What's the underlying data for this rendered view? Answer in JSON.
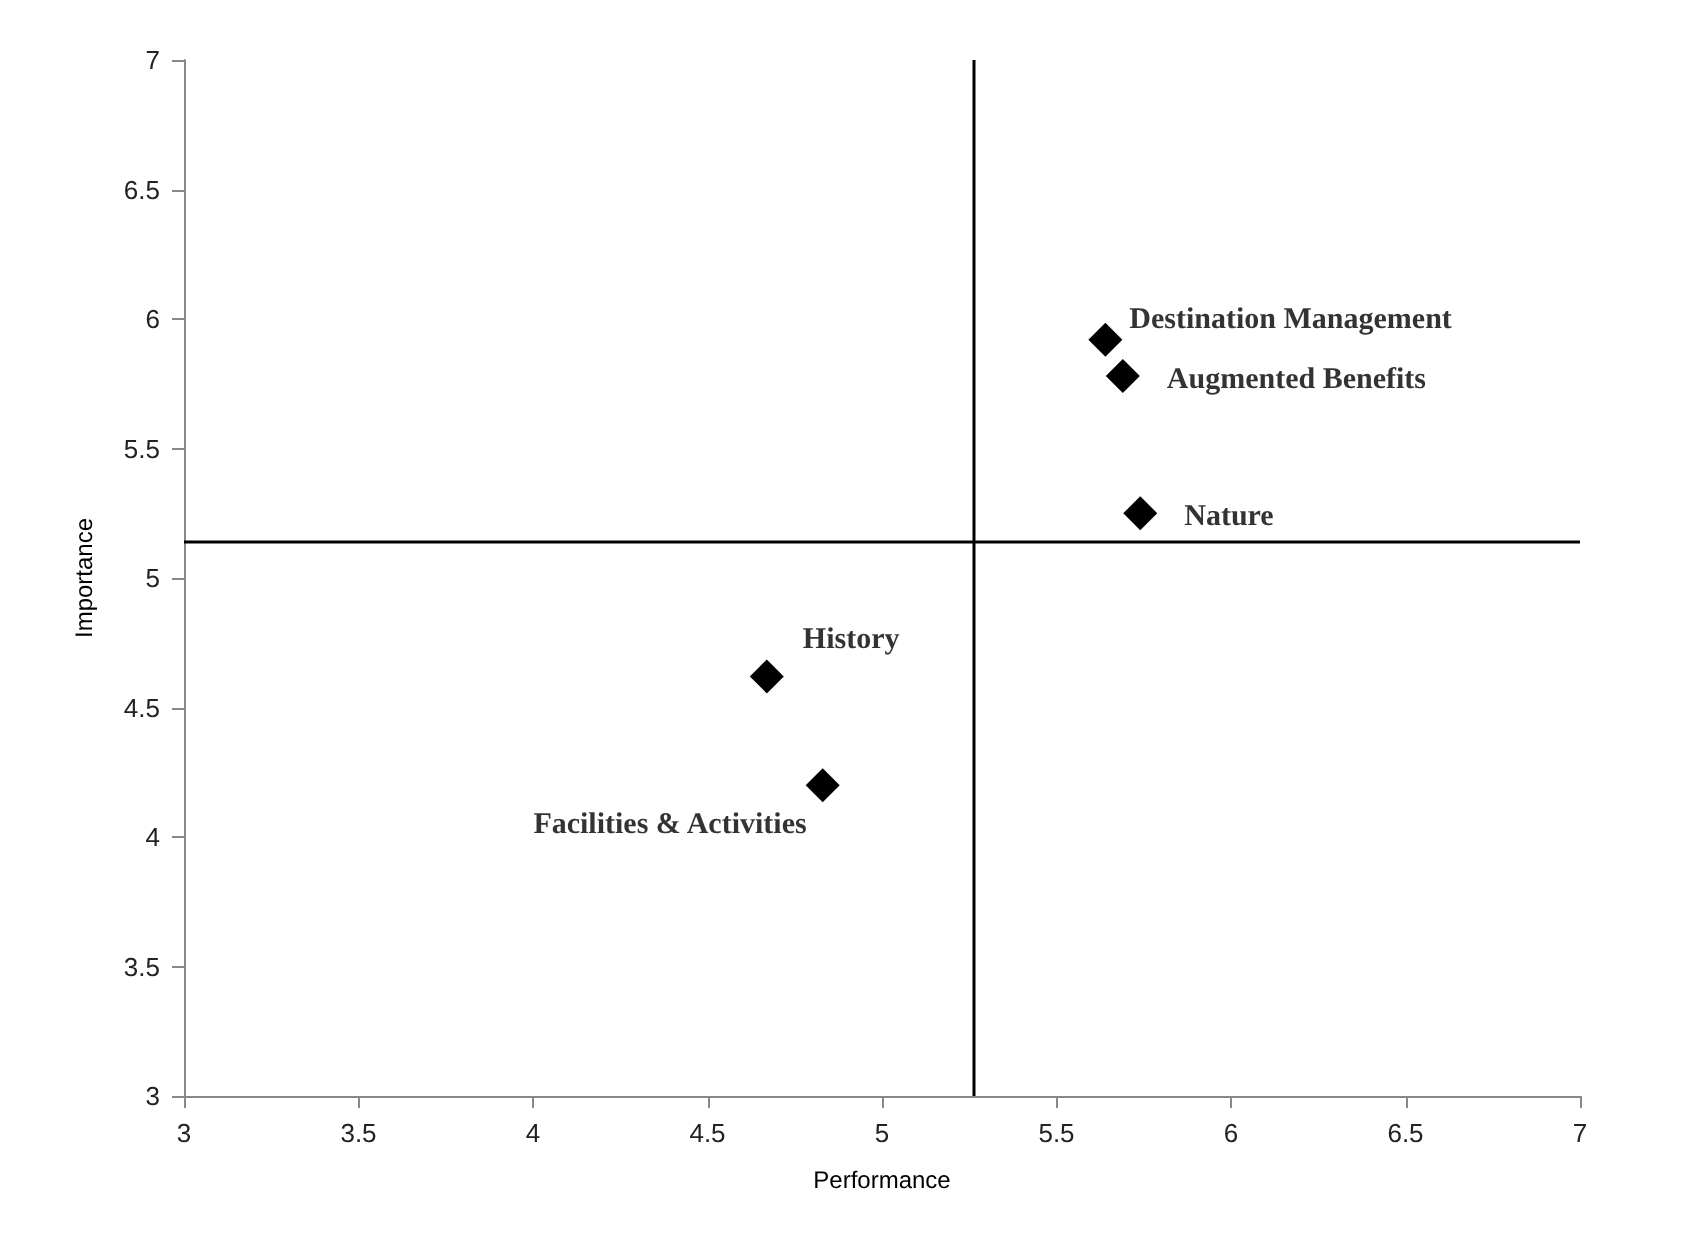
{
  "chart_data": {
    "type": "scatter",
    "xlabel": "Performance",
    "ylabel": "Importance",
    "x": [
      5.64,
      5.69,
      5.74,
      4.67,
      4.83
    ],
    "values": [
      5.92,
      5.78,
      5.25,
      4.62,
      4.2
    ],
    "color": "#000000",
    "marker": "diamond",
    "grid": false,
    "xlim": [
      3,
      7
    ],
    "xticks": [
      3,
      3.5,
      4,
      4.5,
      5,
      5.5,
      6,
      6.5,
      7
    ],
    "ylim": [
      3,
      7
    ],
    "yticks": [
      3,
      3.5,
      4,
      4.5,
      5,
      5.5,
      6,
      6.5,
      7
    ],
    "ref_lines": [
      {
        "axis": "x",
        "value": 5.26,
        "color": "#000000"
      },
      {
        "axis": "y",
        "value": 5.14,
        "color": "#000000"
      }
    ],
    "annotations": [
      {
        "text": "Destination Management",
        "x": 5.64,
        "y": 5.92
      },
      {
        "text": "Augmented Benefits",
        "x": 5.69,
        "y": 5.78
      },
      {
        "text": "Nature",
        "x": 5.74,
        "y": 5.25
      },
      {
        "text": "History",
        "x": 4.67,
        "y": 4.62
      },
      {
        "text": "Facilities & Activities",
        "x": 4.83,
        "y": 4.2
      }
    ]
  }
}
